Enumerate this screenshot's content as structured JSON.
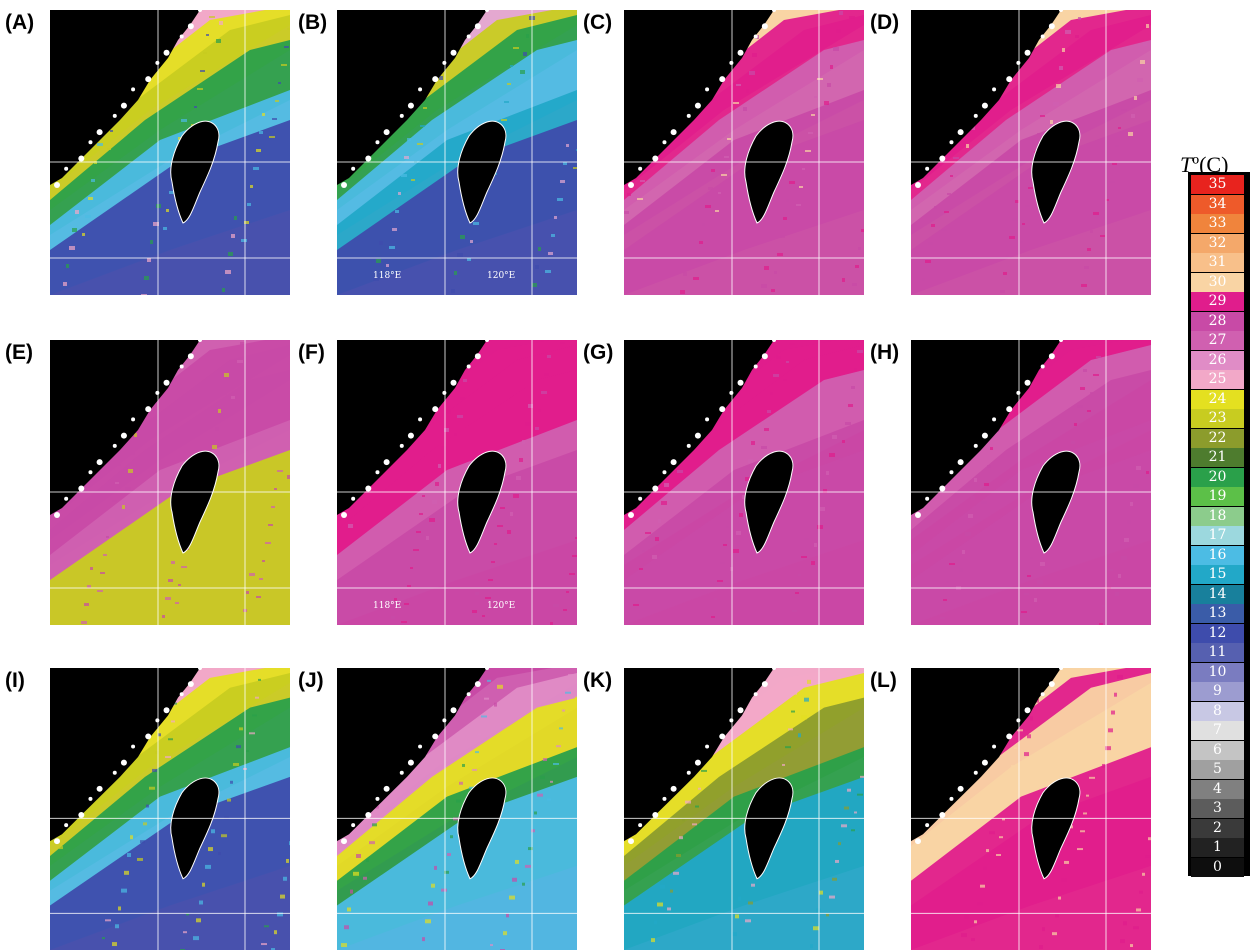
{
  "panels": [
    {
      "label": "(A)",
      "lon_labels": []
    },
    {
      "label": "(B)",
      "lon_labels": [
        "118°E",
        "120°E"
      ]
    },
    {
      "label": "(C)",
      "lon_labels": []
    },
    {
      "label": "(D)",
      "lon_labels": []
    },
    {
      "label": "(E)",
      "lon_labels": []
    },
    {
      "label": "(F)",
      "lon_labels": [
        "118°E",
        "120°E"
      ]
    },
    {
      "label": "(G)",
      "lon_labels": []
    },
    {
      "label": "(H)",
      "lon_labels": []
    },
    {
      "label": "(I)",
      "lon_labels": []
    },
    {
      "label": "(J)",
      "lon_labels": []
    },
    {
      "label": "(K)",
      "lon_labels": []
    },
    {
      "label": "(L)",
      "lon_labels": []
    }
  ],
  "legend": {
    "title_symbol": "T",
    "title_unit": "º(C)",
    "values": [
      "35",
      "34",
      "33",
      "32",
      "31",
      "30",
      "29",
      "28",
      "27",
      "26",
      "25",
      "24",
      "23",
      "22",
      "21",
      "20",
      "19",
      "18",
      "17",
      "16",
      "15",
      "14",
      "13",
      "12",
      "11",
      "10",
      "9",
      "8",
      "7",
      "6",
      "5",
      "4",
      "3",
      "2",
      "1",
      "0"
    ],
    "colors": [
      "#e8231e",
      "#ee5a2a",
      "#f0843c",
      "#f4a86a",
      "#f8c08a",
      "#f9d4a4",
      "#e01d8c",
      "#c84aa6",
      "#d060b0",
      "#e08cc6",
      "#f2a8c8",
      "#e4e020",
      "#c8cc20",
      "#8c9c2c",
      "#4e7c2e",
      "#2aa04a",
      "#5cc048",
      "#8ccc8c",
      "#9cd8de",
      "#4cbce4",
      "#22a8c8",
      "#18809c",
      "#3a5ca8",
      "#3e4cac",
      "#5660b0",
      "#7a7cc0",
      "#9c9cd0",
      "#c8c8e4",
      "#e0e0e0",
      "#c4c4c4",
      "#a0a0a0",
      "#808080",
      "#5c5c5c",
      "#3a3a3a",
      "#222222",
      "#0e0e0e"
    ]
  }
}
